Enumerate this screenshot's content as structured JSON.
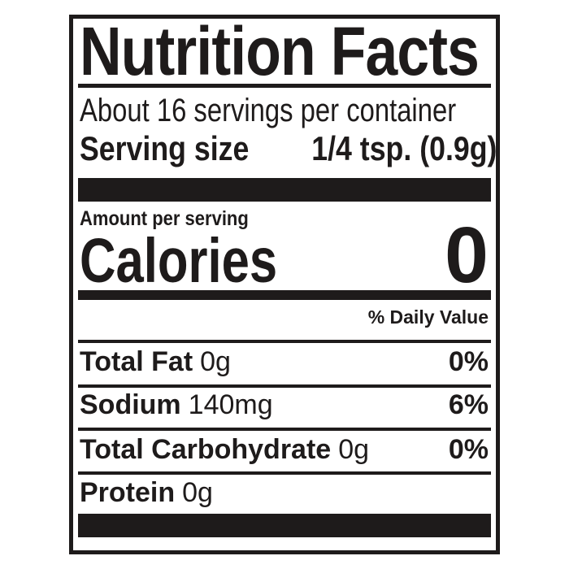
{
  "label": {
    "title": "Nutrition Facts",
    "servings_per_container": "About 16 servings per container",
    "serving_size": {
      "label": "Serving size",
      "value": "1/4 tsp. (0.9g)"
    },
    "amount_per_serving": "Amount per serving",
    "calories": {
      "label": "Calories",
      "value": "0"
    },
    "daily_value_header": "% Daily Value",
    "rows": [
      {
        "name": "Total Fat",
        "amount": "0g",
        "daily_value": "0%"
      },
      {
        "name": "Sodium",
        "amount": "140mg",
        "daily_value": "6%"
      },
      {
        "name": "Total Carbohydrate",
        "amount": "0g",
        "daily_value": "0%"
      },
      {
        "name": "Protein",
        "amount": "0g",
        "daily_value": ""
      }
    ],
    "colors": {
      "ink": "#1e1b1b",
      "background": "#ffffff"
    }
  }
}
